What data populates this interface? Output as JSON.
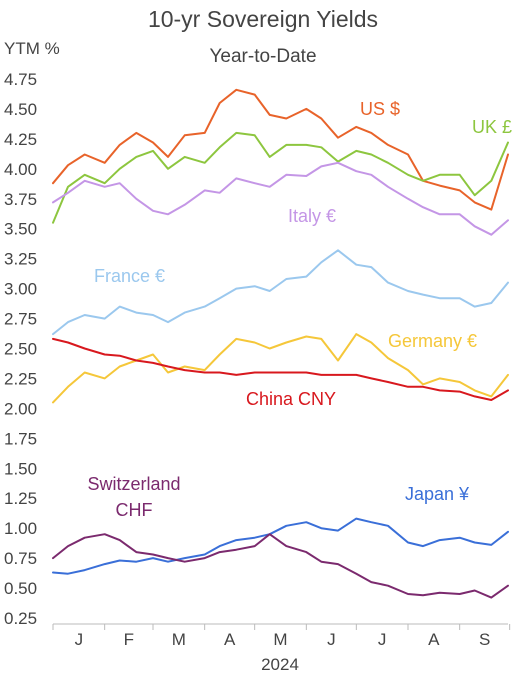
{
  "chart_data": {
    "type": "line",
    "title": "10-yr Sovereign Yields",
    "subtitle": "Year-to-Date",
    "ylabel": "YTM %",
    "xlabel": "2024",
    "ylim": [
      0.25,
      4.75
    ],
    "yticks": [
      "0.25",
      "0.50",
      "0.75",
      "1.00",
      "1.25",
      "1.50",
      "1.75",
      "2.00",
      "2.25",
      "2.50",
      "2.75",
      "3.00",
      "3.25",
      "3.50",
      "3.75",
      "4.00",
      "4.25",
      "4.50",
      "4.75"
    ],
    "xticks": [
      "J",
      "F",
      "M",
      "A",
      "M",
      "J",
      "J",
      "A",
      "S"
    ],
    "x_range": [
      "2024-01-01",
      "2024-09-30"
    ],
    "grid": false,
    "series": [
      {
        "name": "US $",
        "color": "#E8632A",
        "dates": [
          "2024-01-01",
          "2024-01-10",
          "2024-01-20",
          "2024-02-01",
          "2024-02-10",
          "2024-02-20",
          "2024-03-01",
          "2024-03-10",
          "2024-03-20",
          "2024-04-01",
          "2024-04-10",
          "2024-04-20",
          "2024-05-01",
          "2024-05-10",
          "2024-05-20",
          "2024-06-01",
          "2024-06-10",
          "2024-06-20",
          "2024-07-01",
          "2024-07-10",
          "2024-07-20",
          "2024-08-01",
          "2024-08-10",
          "2024-08-20",
          "2024-09-01",
          "2024-09-10",
          "2024-09-20",
          "2024-09-30"
        ],
        "values": [
          3.88,
          4.03,
          4.12,
          4.05,
          4.2,
          4.3,
          4.22,
          4.1,
          4.28,
          4.3,
          4.55,
          4.66,
          4.62,
          4.45,
          4.42,
          4.5,
          4.42,
          4.26,
          4.35,
          4.3,
          4.2,
          4.12,
          3.9,
          3.86,
          3.82,
          3.72,
          3.66,
          4.12
        ]
      },
      {
        "name": "UK £",
        "color": "#8DC63F",
        "dates": [
          "2024-01-01",
          "2024-01-10",
          "2024-01-20",
          "2024-02-01",
          "2024-02-10",
          "2024-02-20",
          "2024-03-01",
          "2024-03-10",
          "2024-03-20",
          "2024-04-01",
          "2024-04-10",
          "2024-04-20",
          "2024-05-01",
          "2024-05-10",
          "2024-05-20",
          "2024-06-01",
          "2024-06-10",
          "2024-06-20",
          "2024-07-01",
          "2024-07-10",
          "2024-07-20",
          "2024-08-01",
          "2024-08-10",
          "2024-08-20",
          "2024-09-01",
          "2024-09-10",
          "2024-09-20",
          "2024-09-30"
        ],
        "values": [
          3.55,
          3.85,
          3.95,
          3.88,
          4.0,
          4.1,
          4.15,
          4.0,
          4.1,
          4.05,
          4.18,
          4.3,
          4.28,
          4.1,
          4.2,
          4.2,
          4.18,
          4.06,
          4.15,
          4.12,
          4.05,
          3.95,
          3.9,
          3.95,
          3.95,
          3.78,
          3.9,
          4.22
        ]
      },
      {
        "name": "Italy €",
        "color": "#C496E6",
        "dates": [
          "2024-01-01",
          "2024-01-10",
          "2024-01-20",
          "2024-02-01",
          "2024-02-10",
          "2024-02-20",
          "2024-03-01",
          "2024-03-10",
          "2024-03-20",
          "2024-04-01",
          "2024-04-10",
          "2024-04-20",
          "2024-05-01",
          "2024-05-10",
          "2024-05-20",
          "2024-06-01",
          "2024-06-10",
          "2024-06-20",
          "2024-07-01",
          "2024-07-10",
          "2024-07-20",
          "2024-08-01",
          "2024-08-10",
          "2024-08-20",
          "2024-09-01",
          "2024-09-10",
          "2024-09-20",
          "2024-09-30"
        ],
        "values": [
          3.72,
          3.8,
          3.9,
          3.85,
          3.88,
          3.75,
          3.65,
          3.62,
          3.7,
          3.82,
          3.8,
          3.92,
          3.88,
          3.85,
          3.95,
          3.94,
          4.02,
          4.05,
          3.98,
          3.95,
          3.85,
          3.75,
          3.68,
          3.62,
          3.62,
          3.52,
          3.45,
          3.57
        ]
      },
      {
        "name": "France €",
        "color": "#9BC8EE",
        "dates": [
          "2024-01-01",
          "2024-01-10",
          "2024-01-20",
          "2024-02-01",
          "2024-02-10",
          "2024-02-20",
          "2024-03-01",
          "2024-03-10",
          "2024-03-20",
          "2024-04-01",
          "2024-04-10",
          "2024-04-20",
          "2024-05-01",
          "2024-05-10",
          "2024-05-20",
          "2024-06-01",
          "2024-06-10",
          "2024-06-20",
          "2024-07-01",
          "2024-07-10",
          "2024-07-20",
          "2024-08-01",
          "2024-08-10",
          "2024-08-20",
          "2024-09-01",
          "2024-09-10",
          "2024-09-20",
          "2024-09-30"
        ],
        "values": [
          2.62,
          2.72,
          2.78,
          2.75,
          2.85,
          2.8,
          2.78,
          2.72,
          2.8,
          2.85,
          2.92,
          3.0,
          3.02,
          2.98,
          3.08,
          3.1,
          3.22,
          3.32,
          3.2,
          3.18,
          3.05,
          2.98,
          2.95,
          2.92,
          2.92,
          2.85,
          2.88,
          3.05
        ]
      },
      {
        "name": "Germany €",
        "color": "#F5C73A",
        "dates": [
          "2024-01-01",
          "2024-01-10",
          "2024-01-20",
          "2024-02-01",
          "2024-02-10",
          "2024-02-20",
          "2024-03-01",
          "2024-03-10",
          "2024-03-20",
          "2024-04-01",
          "2024-04-10",
          "2024-04-20",
          "2024-05-01",
          "2024-05-10",
          "2024-05-20",
          "2024-06-01",
          "2024-06-10",
          "2024-06-20",
          "2024-07-01",
          "2024-07-10",
          "2024-07-20",
          "2024-08-01",
          "2024-08-10",
          "2024-08-20",
          "2024-09-01",
          "2024-09-10",
          "2024-09-20",
          "2024-09-30"
        ],
        "values": [
          2.05,
          2.18,
          2.3,
          2.25,
          2.35,
          2.4,
          2.45,
          2.3,
          2.35,
          2.32,
          2.45,
          2.58,
          2.55,
          2.5,
          2.55,
          2.6,
          2.58,
          2.4,
          2.62,
          2.55,
          2.42,
          2.32,
          2.2,
          2.25,
          2.22,
          2.15,
          2.1,
          2.28
        ]
      },
      {
        "name": "China CNY",
        "color": "#D8181E",
        "dates": [
          "2024-01-01",
          "2024-01-10",
          "2024-01-20",
          "2024-02-01",
          "2024-02-10",
          "2024-02-20",
          "2024-03-01",
          "2024-03-10",
          "2024-03-20",
          "2024-04-01",
          "2024-04-10",
          "2024-04-20",
          "2024-05-01",
          "2024-05-10",
          "2024-05-20",
          "2024-06-01",
          "2024-06-10",
          "2024-06-20",
          "2024-07-01",
          "2024-07-10",
          "2024-07-20",
          "2024-08-01",
          "2024-08-10",
          "2024-08-20",
          "2024-09-01",
          "2024-09-10",
          "2024-09-20",
          "2024-09-30"
        ],
        "values": [
          2.58,
          2.55,
          2.5,
          2.45,
          2.44,
          2.4,
          2.38,
          2.35,
          2.32,
          2.3,
          2.3,
          2.28,
          2.3,
          2.3,
          2.3,
          2.3,
          2.28,
          2.28,
          2.28,
          2.25,
          2.22,
          2.18,
          2.18,
          2.15,
          2.14,
          2.1,
          2.07,
          2.15
        ]
      },
      {
        "name": "Japan ¥",
        "color": "#3A6FD8",
        "dates": [
          "2024-01-01",
          "2024-01-10",
          "2024-01-20",
          "2024-02-01",
          "2024-02-10",
          "2024-02-20",
          "2024-03-01",
          "2024-03-10",
          "2024-03-20",
          "2024-04-01",
          "2024-04-10",
          "2024-04-20",
          "2024-05-01",
          "2024-05-10",
          "2024-05-20",
          "2024-06-01",
          "2024-06-10",
          "2024-06-20",
          "2024-07-01",
          "2024-07-10",
          "2024-07-20",
          "2024-08-01",
          "2024-08-10",
          "2024-08-20",
          "2024-09-01",
          "2024-09-10",
          "2024-09-20",
          "2024-09-30"
        ],
        "values": [
          0.63,
          0.62,
          0.65,
          0.7,
          0.73,
          0.72,
          0.75,
          0.72,
          0.75,
          0.78,
          0.85,
          0.9,
          0.92,
          0.95,
          1.02,
          1.05,
          1.0,
          0.98,
          1.08,
          1.05,
          1.02,
          0.88,
          0.85,
          0.9,
          0.92,
          0.88,
          0.86,
          0.97
        ]
      },
      {
        "name": "Switzerland CHF",
        "color": "#7B2A6E",
        "dates": [
          "2024-01-01",
          "2024-01-10",
          "2024-01-20",
          "2024-02-01",
          "2024-02-10",
          "2024-02-20",
          "2024-03-01",
          "2024-03-10",
          "2024-03-20",
          "2024-04-01",
          "2024-04-10",
          "2024-04-20",
          "2024-05-01",
          "2024-05-10",
          "2024-05-20",
          "2024-06-01",
          "2024-06-10",
          "2024-06-20",
          "2024-07-01",
          "2024-07-10",
          "2024-07-20",
          "2024-08-01",
          "2024-08-10",
          "2024-08-20",
          "2024-09-01",
          "2024-09-10",
          "2024-09-20",
          "2024-09-30"
        ],
        "values": [
          0.75,
          0.85,
          0.92,
          0.95,
          0.9,
          0.8,
          0.78,
          0.75,
          0.72,
          0.75,
          0.8,
          0.82,
          0.85,
          0.95,
          0.85,
          0.8,
          0.72,
          0.7,
          0.62,
          0.55,
          0.52,
          0.45,
          0.44,
          0.46,
          0.45,
          0.48,
          0.42,
          0.52
        ]
      }
    ]
  }
}
